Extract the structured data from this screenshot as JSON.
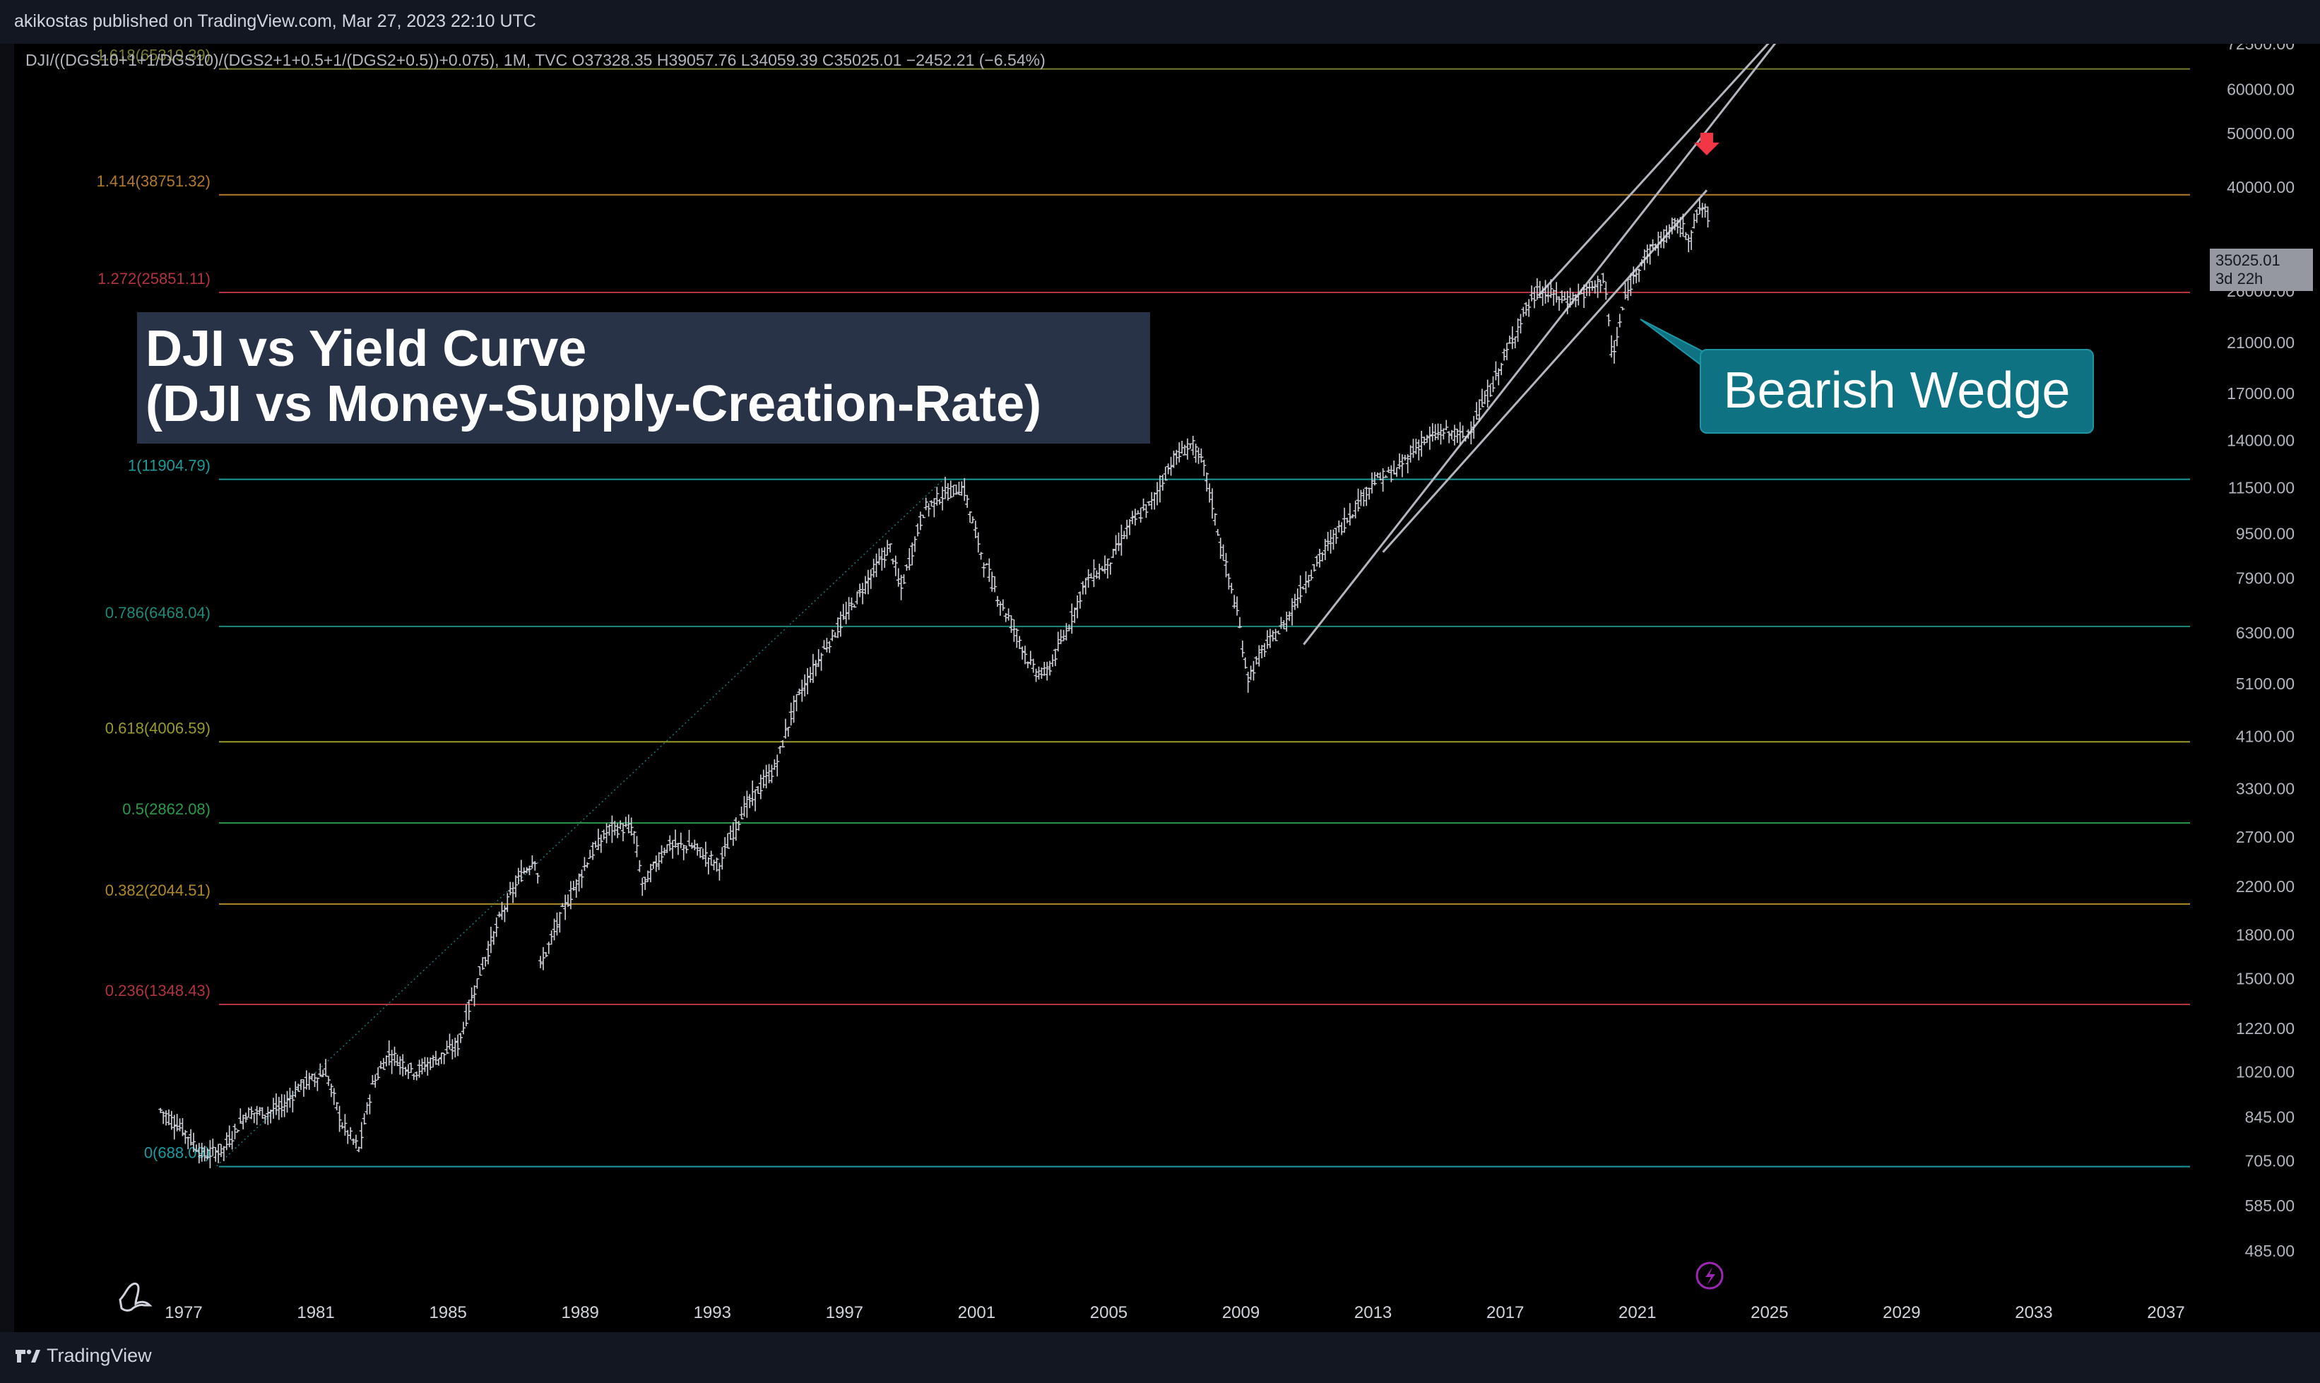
{
  "header": {
    "published": "akikostas published on TradingView.com, Mar 27, 2023 22:10 UTC"
  },
  "symbol_info": "DJI/((DGS10+1+1/DGS10)/(DGS2+1+0.5+1/(DGS2+0.5))+0.075), 1M, TVC  O37328.35  H39057.76  L34059.39  C35025.01  −2452.21 (−6.54%)",
  "title": {
    "line1": "DJI vs Yield Curve",
    "line2": "(DJI vs Money-Supply-Creation-Rate)"
  },
  "annotation": "Bearish Wedge",
  "price_tag": {
    "value": "35025.01",
    "countdown": "3d 22h"
  },
  "footer": {
    "brand": "TradingView"
  },
  "colors": {
    "background": "#000000",
    "candles": "#d1d4dc",
    "trendline": "#b2b5be",
    "arrow": "#f23645",
    "callout": "#0e7282",
    "title_box": "#293347"
  },
  "chart_data": {
    "type": "bar",
    "scale": "log",
    "x_ticks": [
      "1977",
      "1981",
      "1985",
      "1989",
      "1993",
      "1997",
      "2001",
      "2005",
      "2009",
      "2013",
      "2017",
      "2021",
      "2025",
      "2029",
      "2033",
      "2037"
    ],
    "y_ticks": [
      "72500.00",
      "60000.00",
      "50000.00",
      "40000.00",
      "26000.00",
      "21000.00",
      "17000.00",
      "14000.00",
      "11500.00",
      "9500.00",
      "7900.00",
      "6300.00",
      "5100.00",
      "4100.00",
      "3300.00",
      "2700.00",
      "2200.00",
      "1800.00",
      "1500.00",
      "1220.00",
      "1020.00",
      "845.00",
      "705.00",
      "585.00",
      "485.00"
    ],
    "y_tick_values": [
      72500,
      60000,
      50000,
      40000,
      26000,
      21000,
      17000,
      14000,
      11500,
      9500,
      7900,
      6300,
      5100,
      4100,
      3300,
      2700,
      2200,
      1800,
      1500,
      1220,
      1020,
      845,
      705,
      585,
      485
    ],
    "fib_levels": [
      {
        "label": "1.618(65319.39)",
        "value": 65319.39,
        "color": "#787b32"
      },
      {
        "label": "1.414(38751.32)",
        "value": 38751.32,
        "color": "#b07a2a"
      },
      {
        "label": "1.272(25851.11)",
        "value": 25851.11,
        "color": "#b2343e"
      },
      {
        "label": "1(11904.79)",
        "value": 11904.79,
        "color": "#1d9a9a"
      },
      {
        "label": "0.786(6468.04)",
        "value": 6468.04,
        "color": "#1d8a7a"
      },
      {
        "label": "0.618(4006.59)",
        "value": 4006.59,
        "color": "#9a9a2a"
      },
      {
        "label": "0.5(2862.08)",
        "value": 2862.08,
        "color": "#2a9a4a"
      },
      {
        "label": "0.382(2044.51)",
        "value": 2044.51,
        "color": "#b08a2a"
      },
      {
        "label": "0.236(1348.43)",
        "value": 1348.43,
        "color": "#b2343e"
      },
      {
        "label": "0(688.09)",
        "value": 688.09,
        "color": "#1d9aa0"
      }
    ],
    "series": [
      {
        "x": [
          1976.3,
          1977.0,
          1977.6,
          1978.2,
          1978.9,
          1979.5,
          1980.0,
          1980.5,
          1981.3,
          1981.8,
          1982.3,
          1982.7,
          1983.2,
          1984.0,
          1984.7,
          1985.3,
          1985.9,
          1986.6,
          1987.2,
          1987.7,
          1987.8,
          1988.5,
          1989.3,
          1989.9,
          1990.6,
          1990.9,
          1991.6,
          1992.4,
          1993.2,
          1993.9,
          1994.9,
          1995.5,
          1996.4,
          1997.2,
          1997.9,
          1998.4,
          1998.7,
          1999.4,
          2000.0,
          2000.6,
          2001.2,
          2001.7,
          2002.2,
          2002.7,
          2003.1,
          2003.7,
          2004.3,
          2005.0,
          2005.6,
          2006.3,
          2006.9,
          2007.5,
          2007.9,
          2008.4,
          2008.9,
          2009.2,
          2009.7,
          2010.3,
          2010.9,
          2011.6,
          2012.3,
          2013.0,
          2013.7,
          2014.4,
          2015.1,
          2015.8,
          2016.5,
          2017.1,
          2017.6,
          2018.0,
          2018.5,
          2018.9,
          2019.5,
          2020.0,
          2020.25,
          2020.6,
          2021.1,
          2021.7,
          2022.2,
          2022.6,
          2022.9,
          2023.2
        ],
        "close": [
          870,
          800,
          720,
          740,
          860,
          860,
          880,
          960,
          1020,
          820,
          740,
          960,
          1100,
          1020,
          1080,
          1140,
          1500,
          1950,
          2300,
          2500,
          1580,
          2000,
          2500,
          2800,
          2800,
          2200,
          2600,
          2600,
          2400,
          3000,
          3600,
          4700,
          5900,
          7000,
          8200,
          9000,
          7500,
          10500,
          11200,
          11500,
          8500,
          7200,
          6300,
          5400,
          5300,
          6300,
          7800,
          8400,
          9800,
          10800,
          12800,
          13800,
          12500,
          9000,
          6800,
          5200,
          5900,
          6500,
          7700,
          9000,
          10300,
          11800,
          12300,
          13800,
          14500,
          14200,
          17000,
          20500,
          24000,
          26000,
          25500,
          25000,
          26000,
          27500,
          19500,
          25000,
          29500,
          32000,
          34500,
          32500,
          37000,
          35025
        ]
      }
    ],
    "trendlines": [
      {
        "name": "wedge-upper",
        "from": [
          2018.0,
          25500
        ],
        "to": [
          2025.0,
          73000
        ]
      },
      {
        "name": "wedge-lower",
        "from": [
          2010.9,
          6000
        ],
        "to": [
          2025.2,
          73000
        ]
      },
      {
        "name": "wedge-lower-inner",
        "from": [
          2013.3,
          8800
        ],
        "to": [
          2023.1,
          39500
        ]
      },
      {
        "name": "dotted-guide",
        "from": [
          1978.0,
          690
        ],
        "to": [
          2000.0,
          11905
        ]
      }
    ],
    "arrow_marker": {
      "x": 2023.1,
      "y": 47000
    }
  }
}
